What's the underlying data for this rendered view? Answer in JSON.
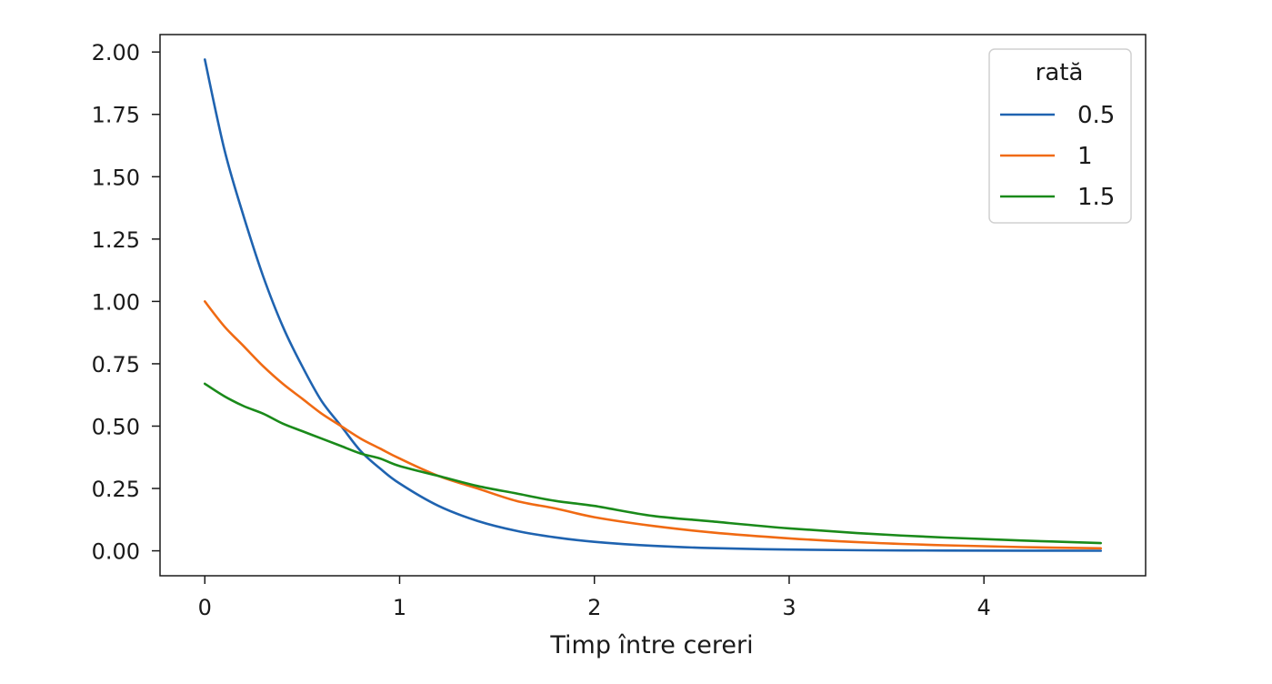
{
  "chart_data": {
    "type": "line",
    "title": "",
    "xlabel": "Timp între cereri",
    "ylabel": "",
    "xlim": [
      -0.23,
      4.83
    ],
    "ylim": [
      -0.1,
      2.07
    ],
    "xticks": [
      0,
      1,
      2,
      3,
      4
    ],
    "xtick_labels": [
      "0",
      "1",
      "2",
      "3",
      "4"
    ],
    "yticks": [
      0,
      0.25,
      0.5,
      0.75,
      1.0,
      1.25,
      1.5,
      1.75,
      2.0
    ],
    "ytick_labels": [
      "0.00",
      "0.25",
      "0.50",
      "0.75",
      "1.00",
      "1.25",
      "1.50",
      "1.75",
      "2.00"
    ],
    "grid": false,
    "legend": {
      "title": "rată",
      "placement": "top-right"
    },
    "x": [
      0,
      0.1,
      0.2,
      0.3,
      0.4,
      0.5,
      0.6,
      0.7,
      0.8,
      0.9,
      1.0,
      1.2,
      1.4,
      1.6,
      1.8,
      2.0,
      2.3,
      2.6,
      3.0,
      3.4,
      3.8,
      4.2,
      4.6
    ],
    "series": [
      {
        "name": "0.5",
        "color": "#1f63b0",
        "values": [
          1.97,
          1.61,
          1.34,
          1.1,
          0.9,
          0.74,
          0.6,
          0.5,
          0.4,
          0.33,
          0.27,
          0.18,
          0.12,
          0.08,
          0.054,
          0.036,
          0.02,
          0.011,
          0.005,
          0.002,
          0.001,
          0.0005,
          0.0002
        ]
      },
      {
        "name": "1",
        "color": "#f06a13",
        "values": [
          1.0,
          0.9,
          0.82,
          0.74,
          0.67,
          0.61,
          0.55,
          0.5,
          0.45,
          0.41,
          0.37,
          0.3,
          0.25,
          0.2,
          0.17,
          0.135,
          0.1,
          0.074,
          0.05,
          0.033,
          0.022,
          0.015,
          0.01
        ]
      },
      {
        "name": "1.5",
        "color": "#1a8a1a",
        "values": [
          0.67,
          0.62,
          0.58,
          0.55,
          0.51,
          0.48,
          0.45,
          0.42,
          0.39,
          0.37,
          0.34,
          0.3,
          0.26,
          0.23,
          0.2,
          0.18,
          0.14,
          0.118,
          0.09,
          0.069,
          0.053,
          0.041,
          0.031
        ]
      }
    ]
  }
}
